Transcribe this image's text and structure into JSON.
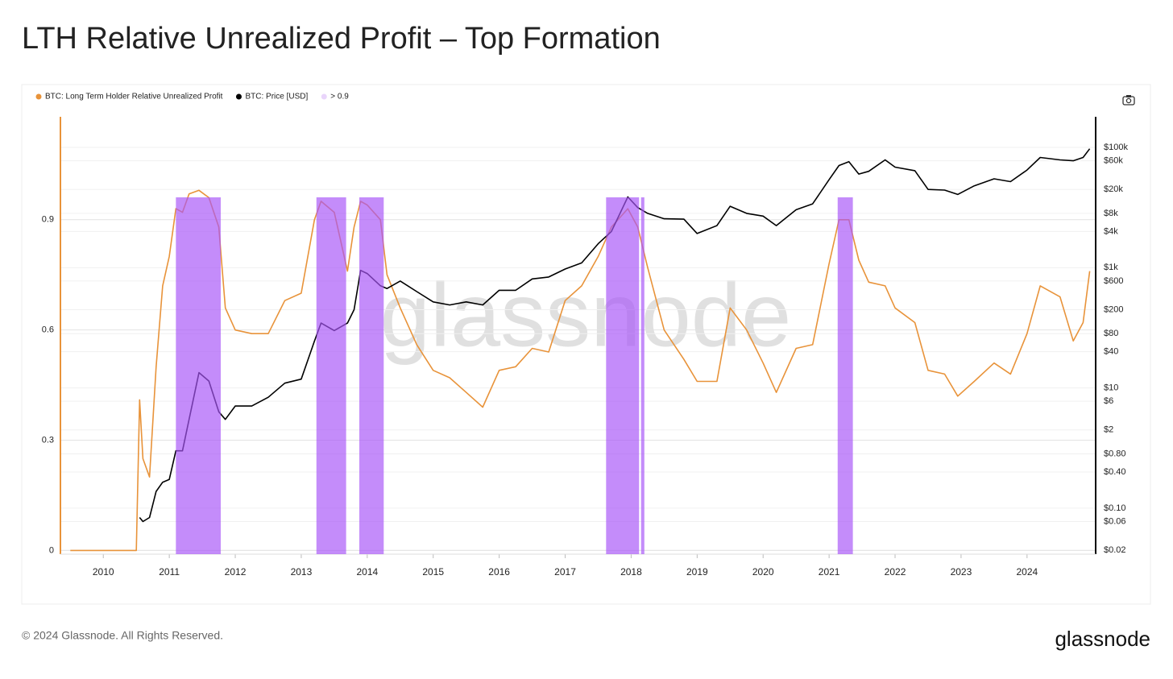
{
  "chart_data": {
    "type": "line",
    "title": "LTH Relative Unrealized Profit – Top Formation",
    "watermark": "glassnode",
    "footer": "© 2024 Glassnode. All Rights Reserved.",
    "logo": "glassnode",
    "x": [
      2009.5,
      2010.5,
      2010.55,
      2010.6,
      2010.7,
      2010.8,
      2010.9,
      2011.0,
      2011.1,
      2011.2,
      2011.3,
      2011.45,
      2011.6,
      2011.75,
      2011.85,
      2012.0,
      2012.25,
      2012.5,
      2012.75,
      2013.0,
      2013.2,
      2013.3,
      2013.5,
      2013.7,
      2013.8,
      2013.9,
      2014.0,
      2014.2,
      2014.3,
      2014.5,
      2014.75,
      2015.0,
      2015.25,
      2015.5,
      2015.75,
      2016.0,
      2016.25,
      2016.5,
      2016.75,
      2017.0,
      2017.25,
      2017.5,
      2017.7,
      2017.95,
      2018.1,
      2018.25,
      2018.5,
      2018.8,
      2019.0,
      2019.3,
      2019.5,
      2019.75,
      2020.0,
      2020.2,
      2020.5,
      2020.75,
      2021.0,
      2021.15,
      2021.3,
      2021.45,
      2021.6,
      2021.85,
      2022.0,
      2022.3,
      2022.5,
      2022.75,
      2022.95,
      2023.2,
      2023.5,
      2023.75,
      2024.0,
      2024.2,
      2024.5,
      2024.7,
      2024.85,
      2024.95
    ],
    "series": [
      {
        "name": "BTC: Long Term Holder Relative Unrealized Profit",
        "color": "#e8933a",
        "values": [
          0,
          0,
          0.41,
          0.25,
          0.2,
          0.5,
          0.72,
          0.8,
          0.93,
          0.92,
          0.97,
          0.98,
          0.96,
          0.88,
          0.66,
          0.6,
          0.59,
          0.59,
          0.68,
          0.7,
          0.9,
          0.95,
          0.92,
          0.76,
          0.88,
          0.95,
          0.94,
          0.9,
          0.75,
          0.66,
          0.56,
          0.49,
          0.47,
          0.43,
          0.39,
          0.49,
          0.5,
          0.55,
          0.54,
          0.68,
          0.72,
          0.8,
          0.88,
          0.93,
          0.88,
          0.77,
          0.6,
          0.52,
          0.46,
          0.46,
          0.66,
          0.6,
          0.51,
          0.43,
          0.55,
          0.56,
          0.78,
          0.9,
          0.9,
          0.79,
          0.73,
          0.72,
          0.66,
          0.62,
          0.49,
          0.48,
          0.42,
          0.46,
          0.51,
          0.48,
          0.59,
          0.72,
          0.69,
          0.57,
          0.62,
          0.76
        ]
      },
      {
        "name": "BTC: Price [USD]",
        "color": "#000000",
        "axis": "y2",
        "values": [
          null,
          null,
          0.07,
          0.06,
          0.07,
          0.19,
          0.27,
          0.3,
          0.9,
          0.9,
          3,
          18,
          13,
          4,
          3,
          5,
          5,
          7,
          12,
          14,
          60,
          120,
          90,
          120,
          200,
          900,
          800,
          500,
          450,
          600,
          400,
          270,
          240,
          270,
          240,
          420,
          420,
          650,
          700,
          950,
          1200,
          2500,
          4000,
          15000,
          10000,
          8000,
          6500,
          6400,
          3700,
          5000,
          10500,
          8000,
          7200,
          5000,
          9200,
          11500,
          29000,
          50000,
          58000,
          36000,
          40000,
          62000,
          47000,
          41000,
          20000,
          19500,
          16500,
          23000,
          30000,
          27000,
          42000,
          68000,
          62000,
          60000,
          68000,
          95000
        ]
      }
    ],
    "bands": {
      "name": "> 0.9",
      "color": "#a855f7",
      "ranges": [
        [
          2011.1,
          2011.78
        ],
        [
          2013.23,
          2013.68
        ],
        [
          2013.88,
          2014.25
        ],
        [
          2017.62,
          2018.12
        ],
        [
          2018.15,
          2018.2
        ],
        [
          2021.13,
          2021.36
        ]
      ]
    },
    "xlim": [
      2009.35,
      2025.04
    ],
    "xticks": [
      2010,
      2011,
      2012,
      2013,
      2014,
      2015,
      2016,
      2017,
      2018,
      2019,
      2020,
      2021,
      2022,
      2023,
      2024
    ],
    "ylim": [
      -0.01,
      1.18
    ],
    "yticks": [
      0,
      0.3,
      0.6,
      0.9
    ],
    "y2log": true,
    "y2lim": [
      0.0172,
      323000
    ],
    "y2ticks": [
      {
        "value": 0.02,
        "label": "$0.02"
      },
      {
        "value": 0.06,
        "label": "$0.06"
      },
      {
        "value": 0.1,
        "label": "$0.10"
      },
      {
        "value": 0.4,
        "label": "$0.40"
      },
      {
        "value": 0.8,
        "label": "$0.80"
      },
      {
        "value": 2,
        "label": "$2"
      },
      {
        "value": 6,
        "label": "$6"
      },
      {
        "value": 10,
        "label": "$10"
      },
      {
        "value": 40,
        "label": "$40"
      },
      {
        "value": 80,
        "label": "$80"
      },
      {
        "value": 200,
        "label": "$200"
      },
      {
        "value": 600,
        "label": "$600"
      },
      {
        "value": 1000,
        "label": "$1k"
      },
      {
        "value": 4000,
        "label": "$4k"
      },
      {
        "value": 8000,
        "label": "$8k"
      },
      {
        "value": 20000,
        "label": "$20k"
      },
      {
        "value": 60000,
        "label": "$60k"
      },
      {
        "value": 100000,
        "label": "$100k"
      }
    ],
    "grid": true
  }
}
